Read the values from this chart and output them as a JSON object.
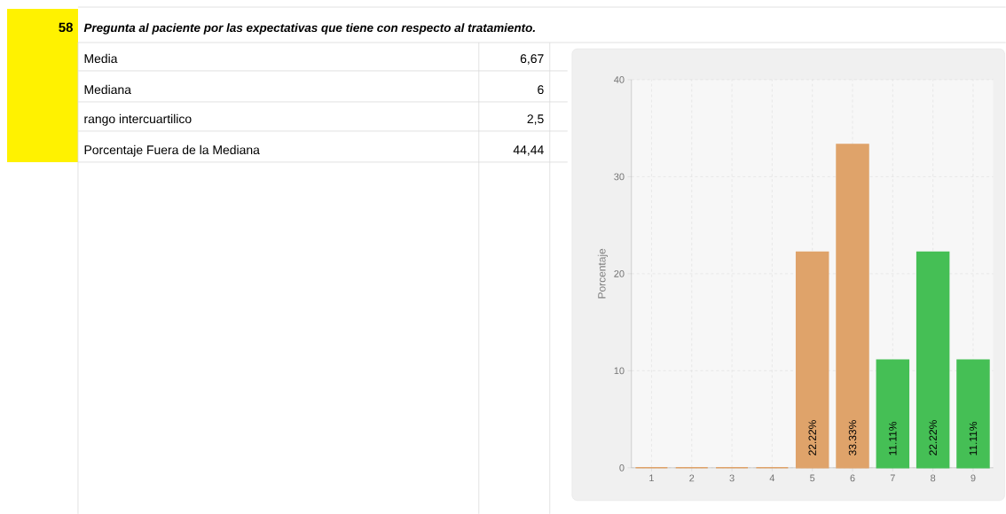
{
  "chart_data": {
    "type": "bar",
    "title": "Pregunta al paciente por las expectativas que tiene con respecto al tratamiento.",
    "annotations": [
      "58",
      "Media",
      "6,67",
      "Mediana",
      "6",
      "rango intercuartilico",
      "2,5",
      "Porcentaje Fuera de la Mediana",
      "44,44"
    ],
    "ylabel": "Porcentaje",
    "categories": [
      "1",
      "2",
      "3",
      "4",
      "5",
      "6",
      "7",
      "8",
      "9"
    ],
    "values": [
      0,
      0,
      0,
      0,
      22.22,
      33.33,
      11.11,
      22.22,
      11.11
    ],
    "colors": [
      "#dfa36a",
      "#dfa36a",
      "#dfa36a",
      "#dfa36a",
      "#dfa36a",
      "#dfa36a",
      "#45bf55",
      "#45bf55",
      "#45bf55"
    ],
    "value_labels": [
      null,
      null,
      null,
      null,
      "22.22%",
      "33.33%",
      "11.11%",
      "22.22%",
      "11.11%"
    ],
    "ylim": [
      0,
      40
    ],
    "yticks": [
      0,
      10,
      20,
      30,
      40
    ],
    "grid": true
  }
}
